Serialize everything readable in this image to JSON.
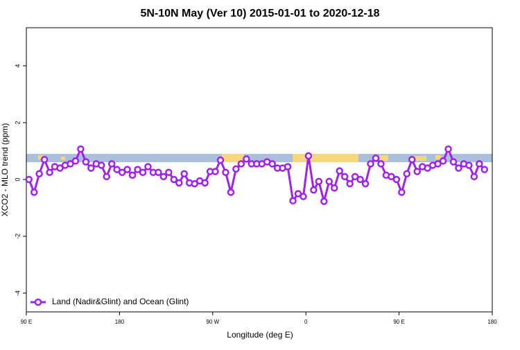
{
  "chart_data": {
    "type": "line",
    "title": "5N-10N May (Ver 10)   2015-01-01 to 2020-12-18",
    "x_label": "Longitude (deg E)",
    "y_label": "XCO2 - MLO trend (ppm)",
    "x": [
      92.5,
      97.5,
      102.5,
      107.5,
      112.5,
      117.5,
      122.5,
      127.5,
      132.5,
      137.5,
      142.5,
      147.5,
      152.5,
      157.5,
      162.5,
      167.5,
      172.5,
      177.5,
      182.5,
      187.5,
      192.5,
      197.5,
      202.5,
      207.5,
      212.5,
      217.5,
      222.5,
      227.5,
      232.5,
      237.5,
      242.5,
      247.5,
      252.5,
      257.5,
      262.5,
      267.5,
      272.5,
      277.5,
      282.5,
      287.5,
      292.5,
      297.5,
      302.5,
      307.5,
      312.5,
      317.5,
      322.5,
      327.5,
      332.5,
      337.5,
      342.5,
      347.5,
      352.5,
      357.5,
      362.5,
      367.5,
      372.5,
      377.5,
      382.5,
      387.5,
      392.5,
      397.5,
      402.5,
      407.5,
      412.5,
      417.5,
      422.5,
      427.5,
      432.5,
      437.5,
      442.5,
      447.5,
      452.5,
      457.5,
      462.5,
      467.5,
      472.5,
      477.5,
      482.5,
      487.5,
      492.5,
      497.5,
      502.5,
      507.5,
      512.5,
      517.5,
      522.5,
      527.5,
      532.5
    ],
    "series": [
      {
        "name": "Land (Nadir&Glint) and Ocean (Glint)",
        "color": "#a020f0",
        "values": [
          0,
          -0.45,
          0.2,
          0.7,
          0.25,
          0.45,
          0.4,
          0.5,
          0.55,
          0.65,
          1.07,
          0.62,
          0.4,
          0.55,
          0.5,
          0.1,
          0.55,
          0.35,
          0.25,
          0.35,
          0.15,
          0.35,
          0.25,
          0.45,
          0.25,
          0.25,
          0.1,
          0.25,
          0,
          -0.12,
          0.2,
          -0.12,
          -0.15,
          -0.05,
          -0.12,
          0.28,
          0.28,
          0.68,
          0.25,
          -0.45,
          0.37,
          0.55,
          0.72,
          0.55,
          0.55,
          0.55,
          0.62,
          0.55,
          0.4,
          0.4,
          0.45,
          -0.75,
          -0.5,
          -0.6,
          0.83,
          -0.37,
          -0.07,
          -0.77,
          -0.07,
          -0.3,
          0.3,
          0.1,
          -0.15,
          0.1,
          0,
          -0.15,
          0.55,
          0.75,
          0.55,
          0.15,
          0.1,
          0,
          -0.45,
          0.2,
          0.7,
          0.28,
          0.45,
          0.4,
          0.5,
          0.55,
          0.65,
          1.07,
          0.62,
          0.4,
          0.55,
          0.5,
          0.1,
          0.55,
          0.35
        ]
      }
    ],
    "xlim": [
      90,
      540
    ],
    "xticks": [
      {
        "value": 90,
        "label": "90 E"
      },
      180,
      {
        "value": 270,
        "label": "90 W"
      },
      {
        "value": 360,
        "label": "0"
      },
      {
        "value": 450,
        "label": "90 E"
      },
      {
        "value": 540,
        "label": "180"
      }
    ],
    "ylim": [
      -4.66,
      5.34
    ],
    "yticks": [
      -4,
      -2,
      0,
      2,
      4
    ],
    "legend": "bottom-left"
  }
}
